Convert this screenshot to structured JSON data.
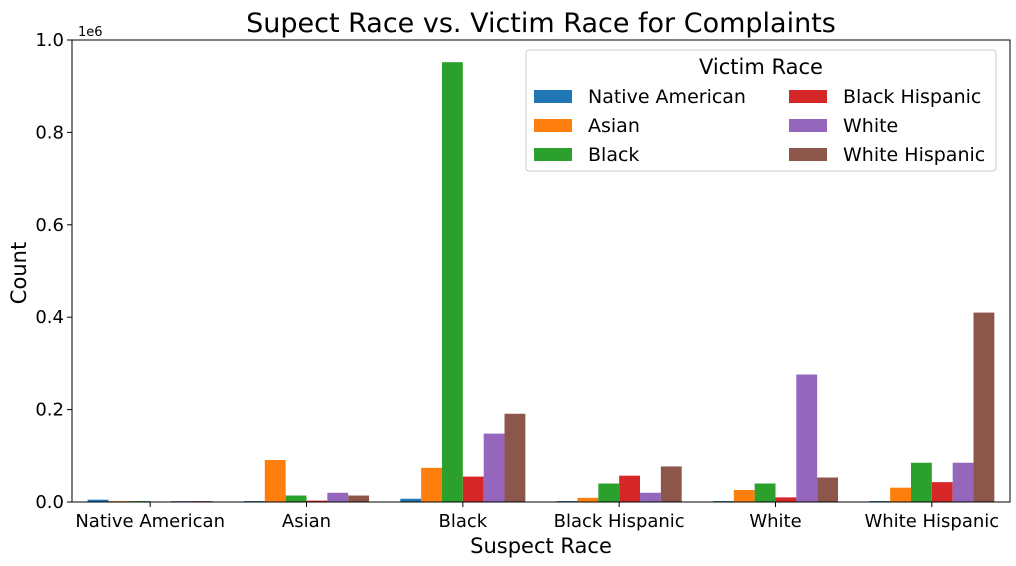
{
  "chart_data": {
    "type": "bar",
    "title": "Supect Race vs. Victim Race for Complaints",
    "xlabel": "Suspect Race",
    "ylabel": "Count",
    "y_offset_label": "1e6",
    "ylim": [
      0,
      1.0
    ],
    "yticks": [
      "0.0",
      "0.2",
      "0.4",
      "0.6",
      "0.8",
      "1.0"
    ],
    "categories": [
      "Native American",
      "Asian",
      "Black",
      "Black Hispanic",
      "White",
      "White Hispanic"
    ],
    "legend": {
      "title": "Victim Race",
      "placement": "upper right",
      "columns": 2
    },
    "series": [
      {
        "name": "Native American",
        "color": "#1f77b4",
        "values": [
          0.005,
          0.002,
          0.007,
          0.002,
          0.002,
          0.002
        ]
      },
      {
        "name": "Asian",
        "color": "#ff7f0e",
        "values": [
          0.002,
          0.091,
          0.074,
          0.009,
          0.026,
          0.031
        ]
      },
      {
        "name": "Black",
        "color": "#2ca02c",
        "values": [
          0.002,
          0.014,
          0.952,
          0.04,
          0.04,
          0.085
        ]
      },
      {
        "name": "Black Hispanic",
        "color": "#d62728",
        "values": [
          0.001,
          0.003,
          0.055,
          0.057,
          0.01,
          0.043
        ]
      },
      {
        "name": "White",
        "color": "#9467bd",
        "values": [
          0.002,
          0.02,
          0.148,
          0.02,
          0.276,
          0.085
        ]
      },
      {
        "name": "White Hispanic",
        "color": "#8c564b",
        "values": [
          0.002,
          0.014,
          0.191,
          0.077,
          0.053,
          0.41
        ]
      }
    ]
  }
}
